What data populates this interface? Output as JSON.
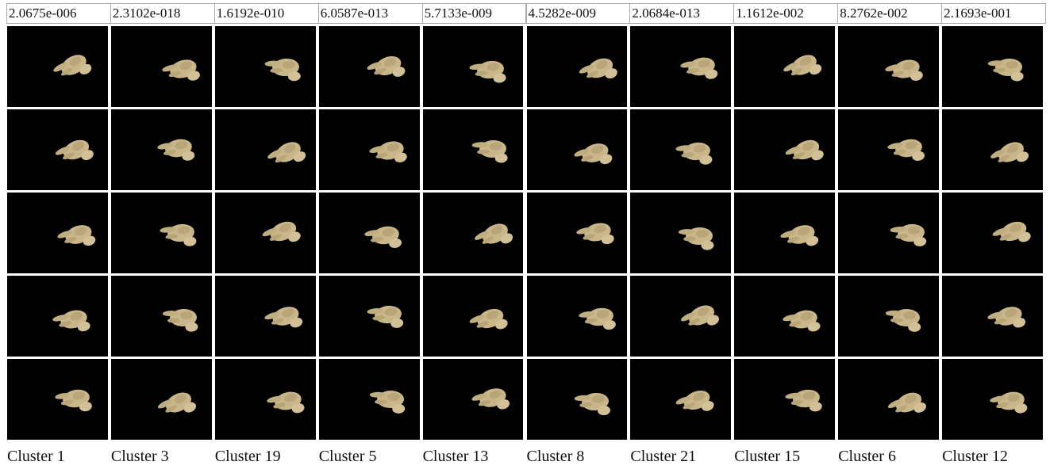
{
  "columns": [
    {
      "score": "2.0675e-006",
      "label": "Cluster 1"
    },
    {
      "score": "2.3102e-018",
      "label": "Cluster 3"
    },
    {
      "score": "1.6192e-010",
      "label": "Cluster 19"
    },
    {
      "score": "6.0587e-013",
      "label": "Cluster 5"
    },
    {
      "score": "5.7133e-009",
      "label": "Cluster 13"
    },
    {
      "score": "4.5282e-009",
      "label": "Cluster 8"
    },
    {
      "score": "2.0684e-013",
      "label": "Cluster 21"
    },
    {
      "score": "1.1612e-002",
      "label": "Cluster 15"
    },
    {
      "score": "8.2762e-002",
      "label": "Cluster 6"
    },
    {
      "score": "2.1693e-001",
      "label": "Cluster 12"
    }
  ]
}
